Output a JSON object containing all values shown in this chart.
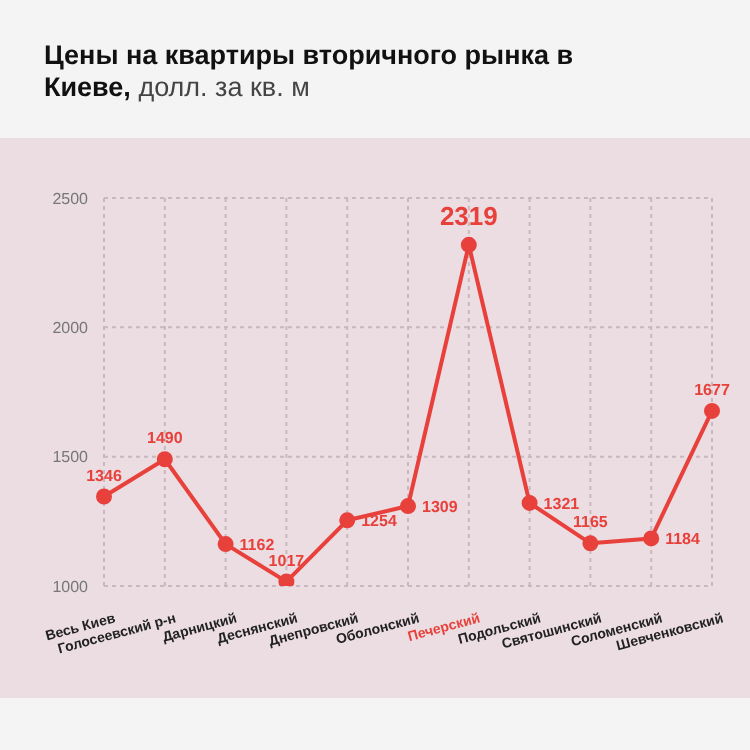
{
  "chart_data": {
    "type": "line",
    "title": "Цены на квартиры вторичного рынка в Киеве,",
    "subtitle": "долл. за кв. м",
    "categories": [
      "Весь Киев",
      "Голосеевский р-н",
      "Дарницкий",
      "Деснянский",
      "Днепровский",
      "Оболонский",
      "Печерский",
      "Подольский",
      "Святошинский",
      "Соломенский",
      "Шевченковский"
    ],
    "series": [
      {
        "color": "#e8413c",
        "values": [
          1346,
          1490,
          1162,
          1017,
          1254,
          1309,
          2319,
          1321,
          1165,
          1184,
          1677
        ]
      }
    ],
    "ylim": [
      1000,
      2500
    ],
    "yticks": [
      1000,
      1500,
      2000,
      2500
    ],
    "grid": true,
    "marker": "circle",
    "line_style": "solid",
    "data_labels": true
  }
}
